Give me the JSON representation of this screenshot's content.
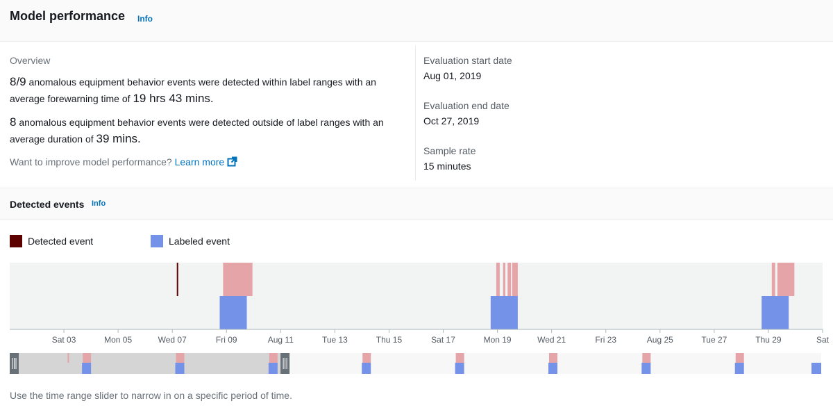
{
  "header": {
    "title": "Model performance",
    "info": "Info"
  },
  "overview": {
    "label": "Overview",
    "p1_ratio": "8/9",
    "p1_text": "anomalous equipment behavior events were detected within label ranges with an average forewarning time of",
    "p1_value": "19 hrs 43 mins.",
    "p2_count": "8",
    "p2_text": "anomalous equipment behavior events were detected outside of label ranges with an average duration of",
    "p2_value": "39 mins.",
    "improve_text": "Want to improve model performance?",
    "learn_more": "Learn more"
  },
  "evaluation": {
    "start_label": "Evaluation start date",
    "start_value": "Aug 01, 2019",
    "end_label": "Evaluation end date",
    "end_value": "Oct 27, 2019",
    "rate_label": "Sample rate",
    "rate_value": "15 minutes"
  },
  "detected_events": {
    "title": "Detected events",
    "info": "Info",
    "legend": [
      {
        "label": "Detected event",
        "color": "#5c0000"
      },
      {
        "label": "Labeled event",
        "color": "#7492e7"
      }
    ],
    "hint": "Use the time range slider to narrow in on a specific period of time."
  },
  "colors": {
    "detected_highlight": "#e5a5a8",
    "labeled": "#7492e7",
    "detected_dark": "#5c0000",
    "plot_bg": "#f2f3f3",
    "link": "#0073bb"
  },
  "chart_data": {
    "type": "timeline",
    "x_range": [
      "2019-08-01",
      "2019-08-31"
    ],
    "x_ticks": [
      "Sat 03",
      "Mon 05",
      "Wed 07",
      "Fri 09",
      "Aug 11",
      "Tue 13",
      "Thu 15",
      "Sat 17",
      "Mon 19",
      "Wed 21",
      "Fri 23",
      "Aug 25",
      "Tue 27",
      "Thu 29",
      "Sat"
    ],
    "labeled_events": [
      {
        "start": "2019-08-08T18:00",
        "end": "2019-08-09T18:00"
      },
      {
        "start": "2019-08-18T18:00",
        "end": "2019-08-19T18:00"
      },
      {
        "start": "2019-08-28T18:00",
        "end": "2019-08-29T18:00"
      }
    ],
    "detected_events": [
      {
        "start": "2019-08-07T04:00",
        "end": "2019-08-07T05:00",
        "outside_label": true
      },
      {
        "start": "2019-08-08T21:00",
        "end": "2019-08-09T23:00"
      },
      {
        "start": "2019-08-18T23:00",
        "end": "2019-08-19T02:00"
      },
      {
        "start": "2019-08-19T05:00",
        "end": "2019-08-19T07:00"
      },
      {
        "start": "2019-08-19T09:00",
        "end": "2019-08-19T12:00"
      },
      {
        "start": "2019-08-19T13:00",
        "end": "2019-08-19T18:00"
      },
      {
        "start": "2019-08-29T03:00",
        "end": "2019-08-29T06:00"
      },
      {
        "start": "2019-08-29T08:00",
        "end": "2019-08-29T23:00"
      }
    ],
    "overview_range": [
      "2019-08-01",
      "2019-10-27"
    ],
    "slider_selection": [
      "2019-08-01",
      "2019-08-31"
    ]
  }
}
